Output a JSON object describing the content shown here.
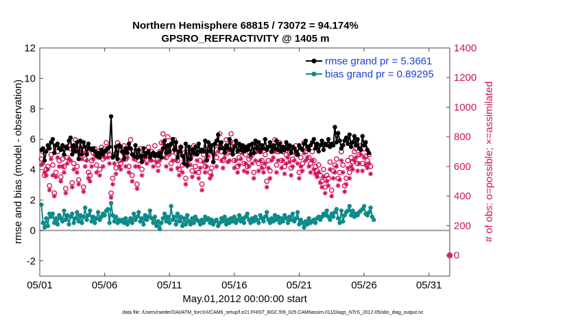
{
  "chart_data": {
    "type": "line",
    "title_line1": "Northern Hemisphere 68815 / 73072 = 94.174%",
    "title_line2": "GPSRO_REFRACTIVITY @ 1405 m",
    "xlabel": "May.01,2012 00:00:00 start",
    "ylabel_left": "rmse and bias (model - observation)",
    "ylabel_right": "# of obs: o=possible; ×=assimilated",
    "xlim": [
      0,
      31.6
    ],
    "ylim_left": [
      -3,
      12
    ],
    "ylim_right": [
      -140,
      1400
    ],
    "x_ticks": [
      0,
      5,
      10,
      15,
      20,
      25,
      30
    ],
    "x_tick_labels": [
      "05/01",
      "05/06",
      "05/11",
      "05/16",
      "05/21",
      "05/26",
      "05/31"
    ],
    "y_ticks_left": [
      -2,
      0,
      2,
      4,
      6,
      8,
      10,
      12
    ],
    "y_ticks_right": [
      0,
      200,
      400,
      600,
      800,
      1000,
      1200,
      1400
    ],
    "time_step_days": 0.125,
    "series": [
      {
        "name": "rmse grand pr = 5.3661",
        "axis": "left",
        "color": "#000000",
        "marker": "filled-circle",
        "values": [
          5.3,
          5.4,
          4.6,
          5.2,
          5.6,
          5.4,
          5.8,
          6.0,
          5.1,
          5.6,
          5.7,
          5.4,
          5.3,
          5.6,
          5.0,
          5.5,
          5.4,
          5.9,
          6.1,
          5.0,
          5.6,
          5.2,
          5.8,
          4.7,
          5.9,
          5.0,
          5.8,
          5.5,
          5.0,
          5.7,
          5.4,
          5.3,
          5.4,
          5.2,
          4.9,
          5.1,
          4.8,
          5.3,
          5.0,
          5.2,
          5.3,
          5.4,
          5.5,
          7.5,
          4.8,
          4.9,
          5.5,
          4.7,
          5.6,
          5.5,
          5.2,
          4.7,
          5.4,
          5.1,
          5.7,
          5.4,
          5.0,
          4.9,
          5.6,
          4.8,
          5.3,
          4.9,
          4.5,
          5.4,
          4.9,
          5.1,
          5.2,
          4.8,
          5.0,
          5.1,
          4.9,
          5.0,
          4.9,
          5.1,
          4.8,
          5.4,
          5.9,
          5.1,
          5.6,
          5.2,
          5.7,
          6.0,
          5.3,
          5.8,
          4.8,
          5.2,
          5.5,
          4.9,
          4.4,
          5.7,
          4.3,
          5.5,
          4.7,
          5.3,
          5.1,
          5.5,
          5.0,
          5.7,
          5.2,
          5.3,
          5.2,
          5.9,
          4.6,
          5.8,
          5.2,
          5.6,
          4.5,
          5.7,
          5.9,
          6.3,
          5.4,
          5.8,
          5.4,
          5.1,
          5.6,
          5.4,
          6.0,
          5.3,
          5.0,
          5.5,
          5.9,
          5.2,
          5.7,
          5.3,
          5.6,
          5.2,
          5.5,
          5.3,
          5.6,
          5.0,
          5.7,
          5.1,
          5.9,
          5.4,
          5.8,
          5.2,
          5.6,
          5.4,
          6.0,
          5.3,
          5.5,
          5.8,
          5.2,
          5.6,
          5.4,
          5.9,
          5.3,
          5.7,
          5.2,
          5.5,
          5.3,
          5.8,
          5.4,
          5.6,
          5.1,
          5.5,
          5.4,
          5.2,
          5.0,
          5.6,
          5.4,
          5.3,
          5.7,
          5.9,
          5.5,
          5.3,
          5.6,
          5.8,
          6.0,
          5.4,
          5.7,
          5.2,
          5.6,
          5.9,
          5.3,
          5.7,
          5.6,
          6.0,
          5.5,
          5.7,
          5.6,
          6.8,
          5.8,
          6.4,
          5.9,
          5.4,
          5.6,
          5.9,
          6.1,
          5.7,
          6.3,
          5.5,
          5.8,
          6.2,
          5.6,
          6.0,
          5.4,
          5.3,
          6.2,
          5.6,
          5.8,
          5.3,
          5.1
        ],
        "line_width": 2
      },
      {
        "name": "bias grand pr = 0.89295",
        "axis": "left",
        "color": "#0e8a8a",
        "marker": "filled-circle",
        "values": [
          1.7,
          0.5,
          0.2,
          0.8,
          0.3,
          1.1,
          0.9,
          1.1,
          0.5,
          0.8,
          0.4,
          1.0,
          0.8,
          0.6,
          1.3,
          0.7,
          1.0,
          0.4,
          0.9,
          1.1,
          0.5,
          0.8,
          1.2,
          0.6,
          1.0,
          0.5,
          0.9,
          1.5,
          0.7,
          1.0,
          1.3,
          0.6,
          0.9,
          0.5,
          0.8,
          1.2,
          0.7,
          0.9,
          1.1,
          1.0,
          1.3,
          1.4,
          0.5,
          1.8,
          1.0,
          0.6,
          0.9,
          0.5,
          0.7,
          0.6,
          0.7,
          0.5,
          0.8,
          0.4,
          0.6,
          0.8,
          0.5,
          1.1,
          0.7,
          0.9,
          1.2,
          0.6,
          0.8,
          0.4,
          1.0,
          0.7,
          0.9,
          1.3,
          0.8,
          0.5,
          0.9,
          0.3,
          0.6,
          0.1,
          0.5,
          0.8,
          1.1,
          0.6,
          0.9,
          0.5,
          1.6,
          0.7,
          0.9,
          0.4,
          1.1,
          0.6,
          0.9,
          0.3,
          0.8,
          0.4,
          1.0,
          0.6,
          0.4,
          0.8,
          0.5,
          0.9,
          0.7,
          0.6,
          0.4,
          0.7,
          0.5,
          0.9,
          0.7,
          0.8,
          0.5,
          0.7,
          0.4,
          0.6,
          0.7,
          0.3,
          0.5,
          0.8,
          0.6,
          0.9,
          0.4,
          0.7,
          0.5,
          0.8,
          0.6,
          0.9,
          0.5,
          0.7,
          1.0,
          0.6,
          0.8,
          0.5,
          0.9,
          1.1,
          0.7,
          0.5,
          0.8,
          0.6,
          0.9,
          0.7,
          0.5,
          1.0,
          0.8,
          0.6,
          0.9,
          1.2,
          0.7,
          0.5,
          0.8,
          0.6,
          1.0,
          0.7,
          0.9,
          0.5,
          0.8,
          0.6,
          1.0,
          0.8,
          0.5,
          0.9,
          0.7,
          1.1,
          0.6,
          0.8,
          1.2,
          0.4,
          0.7,
          0.5,
          0.2,
          0.6,
          0.4,
          0.8,
          0.5,
          0.6,
          0.7,
          0.5,
          0.8,
          0.9,
          0.7,
          0.9,
          1.1,
          1.0,
          1.3,
          0.9,
          0.7,
          1.1,
          0.9,
          1.2,
          1.4,
          0.8,
          0.5,
          1.3,
          0.6,
          1.0,
          1.2,
          1.3,
          1.6,
          1.0,
          1.3,
          0.9,
          1.1,
          1.0,
          1.2,
          1.3,
          1.4,
          1.6,
          1.1,
          1.0,
          1.2,
          1.5,
          0.9,
          0.7
        ],
        "line_width": 2
      },
      {
        "name": "# of obs possible",
        "axis": "right",
        "color": "#d0105a",
        "marker": "open-circle",
        "values": [
          650,
          700,
          540,
          580,
          600,
          470,
          680,
          610,
          420,
          560,
          700,
          640,
          530,
          650,
          600,
          450,
          660,
          740,
          720,
          490,
          620,
          780,
          600,
          510,
          720,
          690,
          460,
          650,
          700,
          560,
          540,
          640,
          690,
          720,
          610,
          700,
          580,
          730,
          650,
          720,
          760,
          700,
          680,
          420,
          520,
          680,
          590,
          760,
          640,
          620,
          700,
          740,
          650,
          720,
          600,
          780,
          540,
          700,
          650,
          480,
          640,
          720,
          580,
          690,
          710,
          670,
          730,
          680,
          700,
          650,
          740,
          680,
          610,
          700,
          760,
          820,
          720,
          660,
          800,
          740,
          620,
          700,
          780,
          690,
          640,
          580,
          730,
          610,
          690,
          520,
          650,
          700,
          660,
          570,
          740,
          600,
          690,
          560,
          640,
          480,
          680,
          600,
          650,
          720,
          560,
          590,
          690,
          740,
          660,
          760,
          820,
          700,
          640,
          720,
          780,
          690,
          700,
          820,
          760,
          640,
          700,
          600,
          660,
          700,
          740,
          620,
          680,
          600,
          650,
          720,
          680,
          560,
          700,
          760,
          620,
          700,
          640,
          600,
          680,
          500,
          640,
          570,
          700,
          720,
          780,
          610,
          700,
          760,
          640,
          700,
          600,
          680,
          720,
          690,
          590,
          650,
          700,
          740,
          680,
          560,
          660,
          620,
          760,
          700,
          720,
          660,
          620,
          700,
          640,
          600,
          570,
          610,
          540,
          500,
          580,
          460,
          540,
          520,
          630,
          440,
          570,
          610,
          650,
          520,
          560,
          700,
          610,
          470,
          520,
          640,
          560,
          660,
          630,
          700,
          720,
          620,
          680,
          740,
          620,
          720,
          670,
          640,
          680,
          600
        ],
        "line_width": 0
      },
      {
        "name": "# of obs assimilated",
        "axis": "right",
        "color": "#d0105a",
        "marker": "asterisk",
        "values": [
          610,
          620,
          560,
          540,
          580,
          440,
          650,
          540,
          400,
          530,
          660,
          600,
          500,
          600,
          560,
          420,
          620,
          650,
          640,
          460,
          580,
          700,
          560,
          480,
          680,
          650,
          430,
          600,
          640,
          520,
          500,
          600,
          650,
          680,
          560,
          660,
          540,
          690,
          600,
          660,
          700,
          660,
          620,
          390,
          480,
          620,
          550,
          700,
          600,
          580,
          640,
          680,
          600,
          660,
          560,
          720,
          500,
          650,
          600,
          450,
          600,
          660,
          540,
          640,
          660,
          620,
          680,
          640,
          640,
          600,
          680,
          630,
          570,
          640,
          700,
          760,
          660,
          600,
          740,
          680,
          580,
          640,
          720,
          640,
          590,
          540,
          680,
          560,
          640,
          480,
          600,
          640,
          610,
          530,
          680,
          560,
          640,
          520,
          590,
          440,
          630,
          560,
          600,
          670,
          520,
          540,
          630,
          680,
          600,
          700,
          740,
          640,
          590,
          660,
          700,
          630,
          640,
          760,
          700,
          590,
          640,
          560,
          610,
          650,
          690,
          570,
          620,
          560,
          600,
          660,
          620,
          520,
          640,
          700,
          570,
          640,
          590,
          560,
          620,
          460,
          590,
          520,
          640,
          660,
          700,
          560,
          640,
          700,
          590,
          640,
          550,
          620,
          660,
          630,
          540,
          600,
          640,
          680,
          620,
          520,
          600,
          570,
          690,
          640,
          660,
          600,
          560,
          640,
          580,
          550,
          530,
          560,
          490,
          460,
          530,
          420,
          500,
          470,
          580,
          400,
          520,
          560,
          600,
          470,
          510,
          640,
          560,
          430,
          480,
          590,
          520,
          600,
          580,
          640,
          660,
          570,
          620,
          680,
          570,
          660,
          610,
          590,
          620,
          550
        ],
        "line_width": 0
      }
    ],
    "zero_line": 0,
    "end_marker": {
      "label": "0",
      "axis": "right",
      "value": 0
    }
  },
  "footer": "data file: /Users/raeder/DAI/ATM_forcXX/CAM6_setup/f.e21.FHIST_BGC.f09_025.CAM6assim.011/Diags_NTrS_2012-05/obs_diag_output.nc",
  "colors": {
    "rmse": "#000000",
    "bias": "#0e8a8a",
    "obs": "#d0105a",
    "legend_text": "#1a3fd6"
  }
}
